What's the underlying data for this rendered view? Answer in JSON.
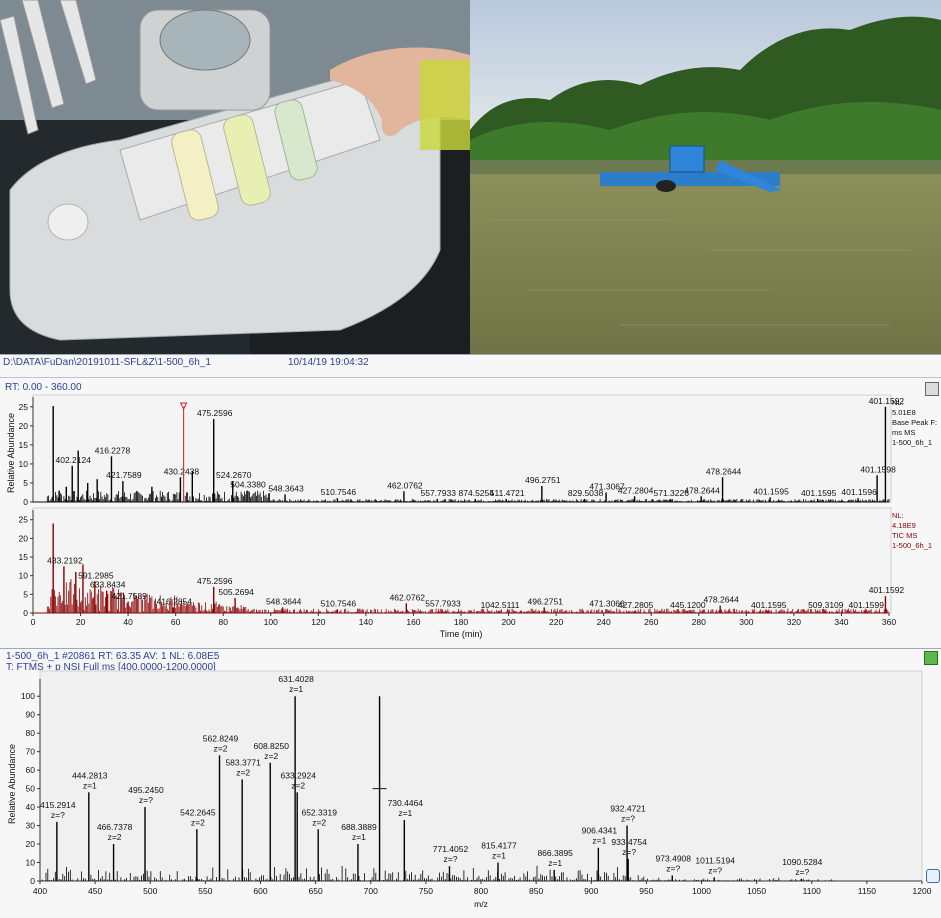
{
  "xcalibur": {
    "file_path": "D:\\DATA\\FuDan\\20191011-SFL&Z\\1-500_6h_1",
    "acquired": "10/14/19 19:04:32",
    "rt_range": "RT: 0.00 - 360.00",
    "chart_data": [
      {
        "type": "line",
        "series_name": "Base Peak",
        "ylabel": "Relative Abundance",
        "yticks": [
          "0",
          "5",
          "10",
          "15",
          "20",
          "25"
        ],
        "ylim": [
          0,
          26
        ],
        "xlim": [
          0,
          360
        ],
        "info": [
          "NL:",
          "5.01E8",
          "Base Peak F:",
          "ms  MS",
          "1-500_6h_1"
        ],
        "peaks": [
          {
            "x": 8.5,
            "y": 25.2
          },
          {
            "x": 11,
            "y": 3
          },
          {
            "x": 14,
            "y": 4
          },
          {
            "x": 16.5,
            "y": 9.5,
            "label": "402.2124"
          },
          {
            "x": 19,
            "y": 13.5
          },
          {
            "x": 23,
            "y": 5
          },
          {
            "x": 27,
            "y": 6
          },
          {
            "x": 33,
            "y": 12,
            "label": "416.2278"
          },
          {
            "x": 37.8,
            "y": 5.5,
            "label": "421.7589"
          },
          {
            "x": 50,
            "y": 4
          },
          {
            "x": 62,
            "y": 6.5,
            "label": "430.2438"
          },
          {
            "x": 67,
            "y": 8
          },
          {
            "x": 76,
            "y": 21.8,
            "label": "475.2596"
          },
          {
            "x": 84,
            "y": 5.5,
            "label": "524.2670"
          },
          {
            "x": 90,
            "y": 3,
            "label": "504.3380"
          },
          {
            "x": 106,
            "y": 2,
            "label": "548.3643"
          },
          {
            "x": 128,
            "y": 1,
            "label": "510.7546"
          },
          {
            "x": 156,
            "y": 2.8,
            "label": "462.0762"
          },
          {
            "x": 170,
            "y": 0.8,
            "label": "557.7933"
          },
          {
            "x": 186,
            "y": 0.8,
            "label": "874.5254"
          },
          {
            "x": 199,
            "y": 0.8,
            "label": "511.4721"
          },
          {
            "x": 214,
            "y": 4.2,
            "label": "496.2751"
          },
          {
            "x": 232,
            "y": 0.8,
            "label": "829.5038"
          },
          {
            "x": 241,
            "y": 2.5,
            "label": "471.3067"
          },
          {
            "x": 253,
            "y": 1.5,
            "label": "427.2804"
          },
          {
            "x": 268,
            "y": 0.8,
            "label": "571.3226"
          },
          {
            "x": 281,
            "y": 1.5,
            "label": "478.2644"
          },
          {
            "x": 290,
            "y": 6.5,
            "label": "478.2644"
          },
          {
            "x": 310,
            "y": 1.2,
            "label": "401.1595"
          },
          {
            "x": 330,
            "y": 0.8,
            "label": "401.1595"
          },
          {
            "x": 347,
            "y": 1,
            "label": "401.1596"
          },
          {
            "x": 355,
            "y": 7,
            "label": "401.1598"
          },
          {
            "x": 358.5,
            "y": 25,
            "label": "401.1592"
          }
        ]
      },
      {
        "type": "line",
        "series_name": "TIC",
        "xlabel": "Time (min)",
        "ylabel": "",
        "yticks": [
          "0",
          "5",
          "10",
          "15",
          "20",
          "25"
        ],
        "xticks": [
          "0",
          "20",
          "40",
          "60",
          "80",
          "100",
          "120",
          "140",
          "160",
          "180",
          "200",
          "220",
          "240",
          "260",
          "280",
          "300",
          "320",
          "340",
          "360"
        ],
        "ylim": [
          0,
          26
        ],
        "xlim": [
          0,
          360
        ],
        "info": [
          "NL:",
          "4.18E9",
          "TIC  MS",
          "1-500_6h_1"
        ],
        "peaks": [
          {
            "x": 8.5,
            "y": 24
          },
          {
            "x": 13,
            "y": 12.5,
            "label": "433.2192"
          },
          {
            "x": 18,
            "y": 11
          },
          {
            "x": 21,
            "y": 13
          },
          {
            "x": 26,
            "y": 8.5,
            "label": "591.2985"
          },
          {
            "x": 31,
            "y": 6,
            "label": "633.8434"
          },
          {
            "x": 37,
            "y": 5.5
          },
          {
            "x": 40,
            "y": 3,
            "label": "421.7589"
          },
          {
            "x": 59,
            "y": 1.5,
            "label": "416.2854"
          },
          {
            "x": 76,
            "y": 7,
            "label": "475.2596"
          },
          {
            "x": 85,
            "y": 4,
            "label": "505.2694"
          },
          {
            "x": 105,
            "y": 1.5,
            "label": "548.3644"
          },
          {
            "x": 128,
            "y": 1,
            "label": "510.7546"
          },
          {
            "x": 157,
            "y": 2.6,
            "label": "462.0762"
          },
          {
            "x": 172,
            "y": 1,
            "label": "557.7933"
          },
          {
            "x": 196,
            "y": 0.6,
            "label": "1042.5111"
          },
          {
            "x": 215,
            "y": 1.5,
            "label": "496.2751"
          },
          {
            "x": 241,
            "y": 1,
            "label": "471.3066"
          },
          {
            "x": 253,
            "y": 0.6,
            "label": "427.2805"
          },
          {
            "x": 275,
            "y": 0.5,
            "label": "445.1200"
          },
          {
            "x": 289,
            "y": 2,
            "label": "478.2644"
          },
          {
            "x": 309,
            "y": 0.6,
            "label": "401.1595"
          },
          {
            "x": 333,
            "y": 0.6,
            "label": "509.3109"
          },
          {
            "x": 350,
            "y": 0.6,
            "label": "401.1599"
          },
          {
            "x": 358.5,
            "y": 4.5,
            "label": "401.1592"
          }
        ]
      }
    ]
  },
  "mass_spectrum": {
    "scan_info": "1-500_6h_1 #20861   RT: 63.35   AV: 1   NL: 6.08E5",
    "filter": "T: FTMS + p NSI Full ms [400.0000-1200.0000]",
    "chart_data": {
      "type": "bar",
      "xlabel": "m/z",
      "ylabel": "Relative Abundance",
      "xlim": [
        400,
        1200
      ],
      "ylim": [
        0,
        105
      ],
      "xticks": [
        "400",
        "450",
        "500",
        "550",
        "600",
        "650",
        "700",
        "750",
        "800",
        "850",
        "900",
        "950",
        "1000",
        "1050",
        "1100",
        "1150",
        "1200"
      ],
      "yticks": [
        "0",
        "10",
        "20",
        "30",
        "40",
        "50",
        "60",
        "70",
        "80",
        "90",
        "100"
      ],
      "peaks": [
        {
          "x": 415.2914,
          "y": 32,
          "label": "415.2914",
          "z": "z=?"
        },
        {
          "x": 444.2813,
          "y": 48,
          "label": "444.2813",
          "z": "z=1"
        },
        {
          "x": 466.7378,
          "y": 20,
          "label": "466.7378",
          "z": "z=2"
        },
        {
          "x": 495.245,
          "y": 40,
          "label": "495.2450",
          "z": "z=?"
        },
        {
          "x": 542.2645,
          "y": 28,
          "label": "542.2645",
          "z": "z=2"
        },
        {
          "x": 562.8249,
          "y": 68,
          "label": "562.8249",
          "z": "z=2"
        },
        {
          "x": 583.3771,
          "y": 55,
          "label": "583.3771",
          "z": "z=2"
        },
        {
          "x": 608.825,
          "y": 64,
          "label": "608.8250",
          "z": "z=2"
        },
        {
          "x": 631.4028,
          "y": 100,
          "label": "631.4028",
          "z": "z=1"
        },
        {
          "x": 633.2924,
          "y": 48,
          "label": "633.2924",
          "z": "z=2"
        },
        {
          "x": 652.3319,
          "y": 28,
          "label": "652.3319",
          "z": "z=2"
        },
        {
          "x": 688.3889,
          "y": 20,
          "label": "688.3889",
          "z": "z=1"
        },
        {
          "x": 708,
          "y": 100
        },
        {
          "x": 730.4464,
          "y": 33,
          "label": "730.4464",
          "z": "z=1"
        },
        {
          "x": 771.4052,
          "y": 8,
          "label": "771.4052",
          "z": "z=?"
        },
        {
          "x": 815.4177,
          "y": 10,
          "label": "815.4177",
          "z": "z=1"
        },
        {
          "x": 866.3895,
          "y": 6,
          "label": "866.3895",
          "z": "z=1"
        },
        {
          "x": 906.4341,
          "y": 18,
          "label": "906.4341",
          "z": "z=1"
        },
        {
          "x": 932.4721,
          "y": 30,
          "label": "932.4721",
          "z": "z=?"
        },
        {
          "x": 933.4754,
          "y": 12,
          "label": "933.4754",
          "z": "z=?"
        },
        {
          "x": 973.4908,
          "y": 3,
          "label": "973.4908",
          "z": "z=?"
        },
        {
          "x": 1011.5194,
          "y": 2,
          "label": "1011.5194",
          "z": "z=?"
        },
        {
          "x": 1090.5284,
          "y": 1,
          "label": "1090.5284",
          "z": "z=?"
        }
      ]
    }
  },
  "colors": {
    "header_text": "#2b3f9a",
    "base_peak_trace": "#000000",
    "tic_trace": "#8b0000",
    "ms_trace": "#000000",
    "annotation_line": "#2ca02c",
    "marker": "#d22222"
  },
  "icons": {
    "xcal_corner": "pin-icon",
    "ms_corner": "green-status-icon",
    "ms_side": "sync-icon"
  }
}
